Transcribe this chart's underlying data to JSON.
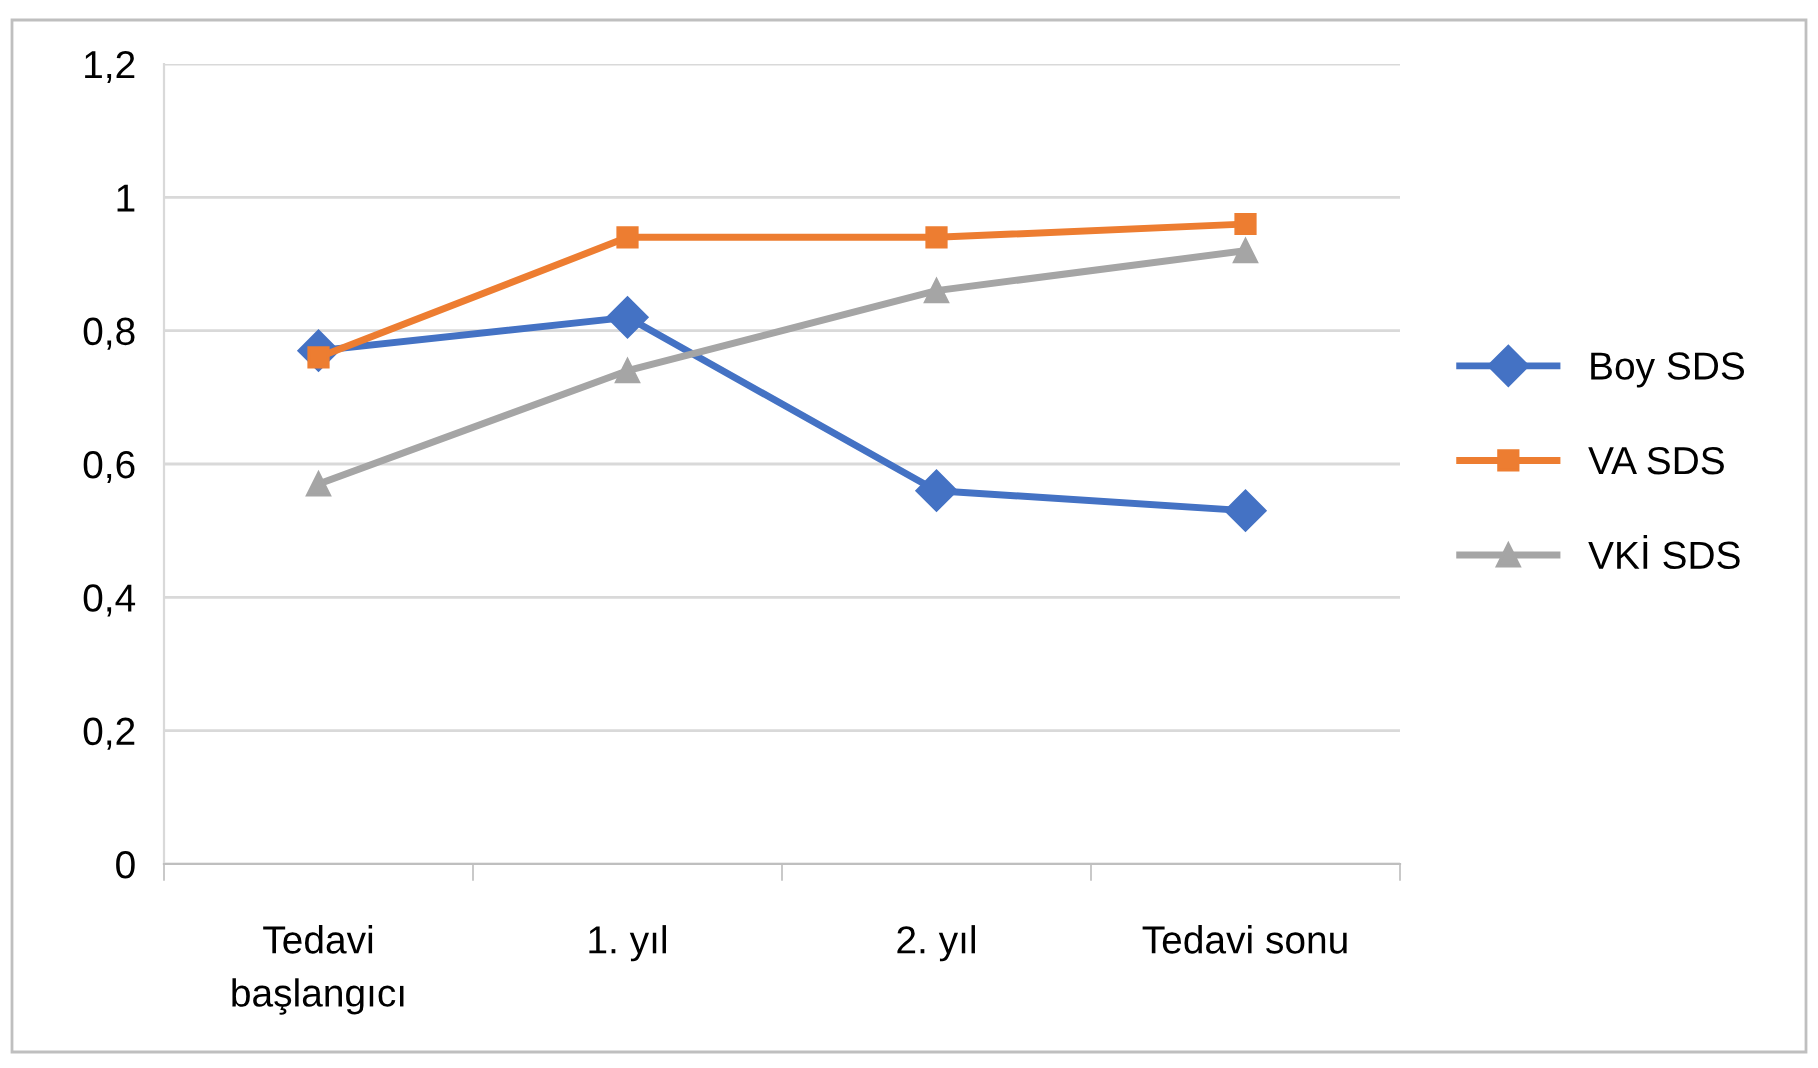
{
  "chart_data": {
    "type": "line",
    "categories": [
      "Tedavi\nbaşlangıcı",
      "1. yıl",
      "2. yıl",
      "Tedavi sonu"
    ],
    "series": [
      {
        "name": "Boy SDS",
        "color": "#4472c4",
        "marker": "diamond",
        "values": [
          0.77,
          0.82,
          0.56,
          0.53
        ]
      },
      {
        "name": "VA SDS",
        "color": "#ed7d31",
        "marker": "square",
        "values": [
          0.76,
          0.94,
          0.94,
          0.96
        ]
      },
      {
        "name": "VKİ SDS",
        "color": "#a5a5a5",
        "marker": "triangle",
        "values": [
          0.57,
          0.74,
          0.86,
          0.92
        ]
      }
    ],
    "ylim": [
      0,
      1.2
    ],
    "yticks": [
      0,
      {
        "value": 0.2,
        "label": "0,2"
      },
      {
        "value": 0.4,
        "label": "0,4"
      },
      {
        "value": 0.6,
        "label": "0,6"
      },
      {
        "value": 0.8,
        "label": "0,8"
      },
      1,
      {
        "value": 1.2,
        "label": "1,2"
      }
    ],
    "grid": "y",
    "legend": "right",
    "line_style": "solid"
  }
}
